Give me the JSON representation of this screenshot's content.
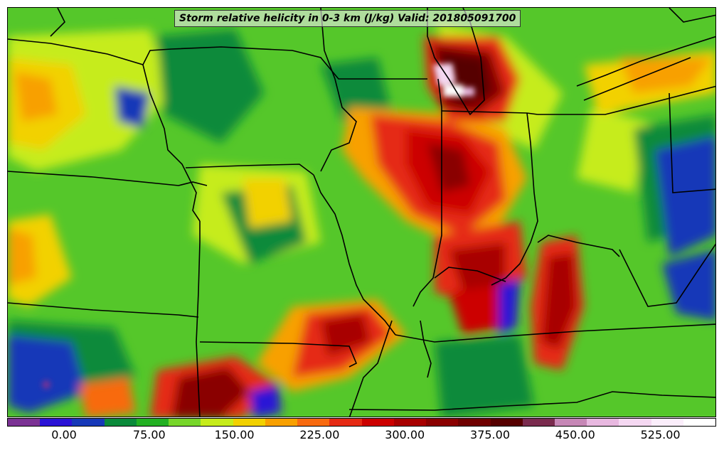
{
  "title": "Storm relative helicity in 0-3 km (J/kg) Valid: 201805091700",
  "colorbar": {
    "colors": [
      "#7b3294",
      "#2b13d6",
      "#1638b8",
      "#0a8a3a",
      "#22b022",
      "#77d62a",
      "#c6ec1a",
      "#f2d100",
      "#f8a000",
      "#f86a10",
      "#e52a14",
      "#cc0000",
      "#a80000",
      "#8a0000",
      "#6f0000",
      "#560000",
      "#7a2b4e",
      "#c687b6",
      "#e8b8e0",
      "#f5d8f2",
      "#fbeefb",
      "#ffffff"
    ],
    "tick_labels": [
      "0.00",
      "75.00",
      "150.00",
      "225.00",
      "300.00",
      "375.00",
      "450.00",
      "525.00"
    ]
  }
}
